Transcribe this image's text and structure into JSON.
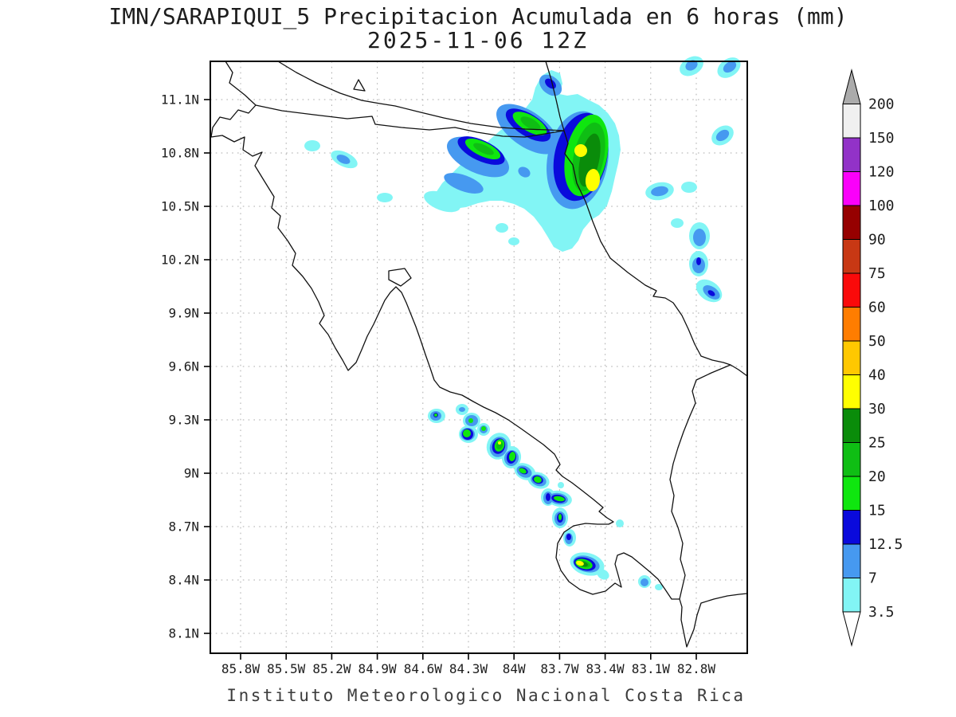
{
  "title": {
    "line1": "IMN/SARAPIQUI_5 Precipitacion Acumulada en 6 horas (mm)",
    "line2": "2025-11-06 12Z"
  },
  "footer": "Instituto Meteorologico Nacional Costa Rica",
  "axes": {
    "y_ticks": [
      "11.1N",
      "10.8N",
      "10.5N",
      "10.2N",
      "9.9N",
      "9.6N",
      "9.3N",
      "9N",
      "8.7N",
      "8.4N",
      "8.1N"
    ],
    "x_ticks": [
      "85.8W",
      "85.5W",
      "85.2W",
      "84.9W",
      "84.6W",
      "84.3W",
      "84W",
      "83.7W",
      "83.4W",
      "83.1W",
      "82.8W"
    ]
  },
  "colorbar": {
    "levels": [
      "3.5",
      "7",
      "12.5",
      "15",
      "20",
      "25",
      "30",
      "40",
      "50",
      "60",
      "75",
      "90",
      "100",
      "120",
      "150",
      "200"
    ],
    "colors": [
      "#82F5F5",
      "#4699F0",
      "#0A0ADC",
      "#0FE60F",
      "#0FBE14",
      "#0A8C0A",
      "#FFFF00",
      "#FFC800",
      "#FF7D00",
      "#FA0A0A",
      "#C83814",
      "#960000",
      "#FA00FA",
      "#9232C8",
      "#F0F0F0"
    ],
    "over_color": "#ABABAB",
    "under_color": "#FFFFFF"
  },
  "chart_data": {
    "type": "heatmap",
    "subtype": "filled-contour precipitation map",
    "title": "IMN/SARAPIQUI_5 Precipitacion Acumulada en 6 horas (mm)",
    "valid_time": "2025-11-06 12Z",
    "units": "mm",
    "region": "Costa Rica",
    "source_caption": "Instituto Meteorologico Nacional Costa Rica",
    "lon_range_deg_w": [
      86.0,
      82.47
    ],
    "lat_range_deg_n": [
      7.99,
      11.32
    ],
    "xlabel_ticks": [
      "85.8W",
      "85.5W",
      "85.2W",
      "84.9W",
      "84.6W",
      "84.3W",
      "84W",
      "83.7W",
      "83.4W",
      "83.1W",
      "82.8W"
    ],
    "ylabel_ticks": [
      "11.1N",
      "10.8N",
      "10.5N",
      "10.2N",
      "9.9N",
      "9.6N",
      "9.3N",
      "9N",
      "8.7N",
      "8.4N",
      "8.1N"
    ],
    "contour_levels_mm": [
      3.5,
      7,
      12.5,
      15,
      20,
      25,
      30,
      40,
      50,
      60,
      75,
      90,
      100,
      120,
      150,
      200
    ],
    "grid": "dotted, every 0.3 degrees",
    "legend_position": "right vertical colorbar with over/under arrows",
    "precipitation_cells": [
      {
        "name": "north-caribbean main core (Sarapiqui/Tortuguero)",
        "lon_w": 83.49,
        "lat_n": 10.65,
        "peak_mm": "30-40 (yellow core in green mass)"
      },
      {
        "name": "north main core secondary maximum",
        "lon_w": 83.56,
        "lat_n": 10.81,
        "peak_mm": "30-40"
      },
      {
        "name": "northern band west cell",
        "lon_w": 84.21,
        "lat_n": 10.82,
        "peak_mm": "15-20"
      },
      {
        "name": "northern band upper cell",
        "lon_w": 83.9,
        "lat_n": 10.97,
        "peak_mm": "15-20"
      },
      {
        "name": "border band cyan/blue shield",
        "lon_w": 84.6,
        "lat_n": 10.9,
        "peak_mm": "7-15"
      },
      {
        "name": "offshore caribbean column",
        "lon_w": 82.78,
        "lat_n": 10.18,
        "peak_mm": "12.5-15"
      },
      {
        "name": "offshore caribbean southern cell",
        "lon_w": 82.71,
        "lat_n": 10.02,
        "peak_mm": "12.5-15"
      },
      {
        "name": "pacific coastal chain NW cell",
        "lon_w": 84.51,
        "lat_n": 9.33,
        "peak_mm": "12.5-15"
      },
      {
        "name": "pacific chain cell near Quepos",
        "lon_w": 84.1,
        "lat_n": 9.17,
        "peak_mm": "30-40 (tiny yellow)"
      },
      {
        "name": "pacific chain mid cells",
        "lon_w": 83.93,
        "lat_n": 9.0,
        "peak_mm": "15-25"
      },
      {
        "name": "Osa peninsula core",
        "lon_w": 83.54,
        "lat_n": 8.49,
        "peak_mm": "30-40 (yellow core)"
      },
      {
        "name": "Golfito small cell",
        "lon_w": 83.14,
        "lat_n": 8.39,
        "peak_mm": "12.5-15"
      }
    ]
  }
}
